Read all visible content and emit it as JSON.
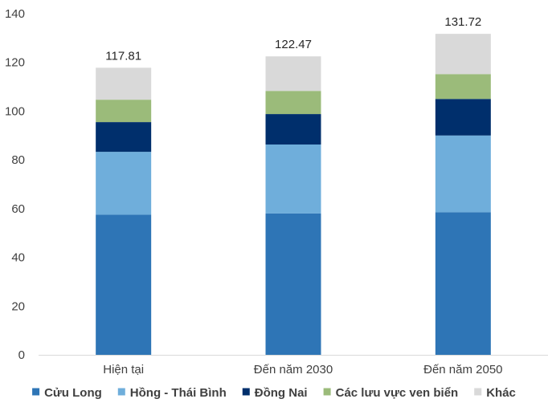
{
  "chart_data": {
    "type": "bar",
    "stacked": true,
    "categories": [
      "Hiện tại",
      "Đến năm 2030",
      "Đến năm 2050"
    ],
    "series": [
      {
        "name": "Cửu Long",
        "color": "#2E75B6",
        "values": [
          57.5,
          58.0,
          58.5
        ]
      },
      {
        "name": "Hồng - Thái Bình",
        "color": "#6FAEDB",
        "values": [
          25.8,
          28.3,
          31.5
        ]
      },
      {
        "name": "Đồng Nai",
        "color": "#002F6C",
        "values": [
          12.2,
          12.5,
          15.0
        ]
      },
      {
        "name": "Các lưu vực ven biển",
        "color": "#9BBB7A",
        "values": [
          9.2,
          9.5,
          10.2
        ]
      },
      {
        "name": "Khác",
        "color": "#D9D9D9",
        "values": [
          13.11,
          14.17,
          16.52
        ]
      }
    ],
    "totals": [
      "117.81",
      "122.47",
      "131.72"
    ],
    "ylim": [
      0,
      140
    ],
    "yticks": [
      0,
      20,
      40,
      60,
      80,
      100,
      120,
      140
    ],
    "grid": false,
    "legend_position": "bottom"
  }
}
